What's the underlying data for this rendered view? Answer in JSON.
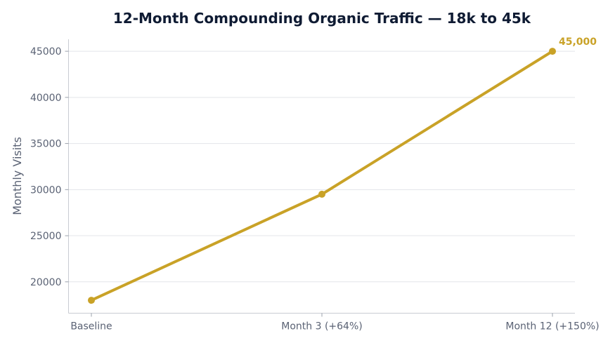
{
  "chart_data": {
    "type": "line",
    "title": "12-Month Compounding Organic Traffic — 18k to 45k",
    "xlabel": "",
    "ylabel": "Monthly Visits",
    "categories": [
      "Baseline",
      "Month 3 (+64%)",
      "Month 12 (+150%)"
    ],
    "series": [
      {
        "values": [
          18000,
          29500,
          45000
        ],
        "color": "#c9a227"
      }
    ],
    "yticks": [
      20000,
      25000,
      30000,
      35000,
      40000,
      45000
    ],
    "ylim": [
      16600,
      46300
    ],
    "grid": true,
    "data_labels": [
      {
        "index": 2,
        "text": "45,000"
      }
    ]
  }
}
